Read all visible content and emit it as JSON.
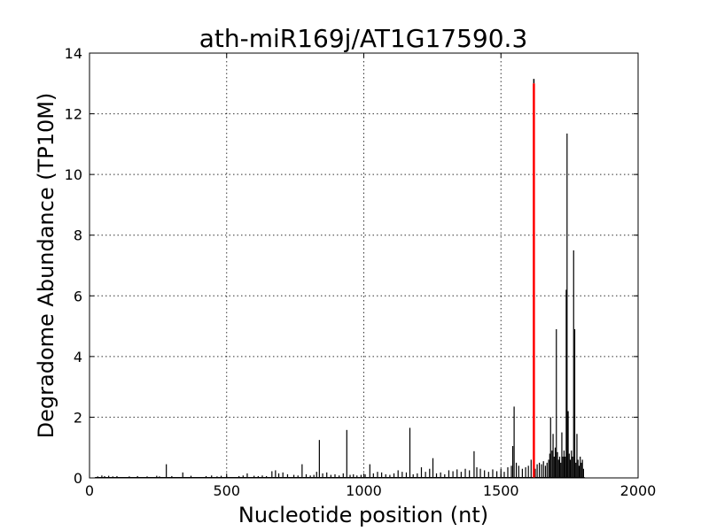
{
  "chart_data": {
    "type": "bar",
    "title": "ath-miR169j/AT1G17590.3",
    "xlabel": "Nucleotide position (nt)",
    "ylabel": "Degradome Abundance (TP10M)",
    "xlim": [
      0,
      2000
    ],
    "ylim": [
      0,
      14
    ],
    "xticks": [
      "0",
      "500",
      "1000",
      "1500",
      "2000"
    ],
    "yticks": [
      "0",
      "2",
      "4",
      "6",
      "8",
      "10",
      "12",
      "14"
    ],
    "grid": true,
    "colors": {
      "series": "#000000",
      "highlight": "#ff0000"
    },
    "series": [
      {
        "values": [
          [
            30,
            0.05
          ],
          [
            45,
            0.08
          ],
          [
            55,
            0.06
          ],
          [
            70,
            0.07
          ],
          [
            85,
            0.05
          ],
          [
            100,
            0.06
          ],
          [
            145,
            0.05
          ],
          [
            175,
            0.06
          ],
          [
            210,
            0.05
          ],
          [
            245,
            0.07
          ],
          [
            255,
            0.05
          ],
          [
            280,
            0.45
          ],
          [
            300,
            0.06
          ],
          [
            340,
            0.18
          ],
          [
            370,
            0.07
          ],
          [
            425,
            0.06
          ],
          [
            445,
            0.08
          ],
          [
            465,
            0.05
          ],
          [
            480,
            0.07
          ],
          [
            500,
            0.05
          ],
          [
            545,
            0.06
          ],
          [
            560,
            0.08
          ],
          [
            575,
            0.15
          ],
          [
            600,
            0.07
          ],
          [
            615,
            0.06
          ],
          [
            630,
            0.08
          ],
          [
            645,
            0.06
          ],
          [
            665,
            0.22
          ],
          [
            678,
            0.25
          ],
          [
            690,
            0.15
          ],
          [
            705,
            0.18
          ],
          [
            722,
            0.12
          ],
          [
            745,
            0.1
          ],
          [
            760,
            0.08
          ],
          [
            775,
            0.45
          ],
          [
            790,
            0.12
          ],
          [
            805,
            0.08
          ],
          [
            818,
            0.1
          ],
          [
            828,
            0.2
          ],
          [
            838,
            1.25
          ],
          [
            850,
            0.15
          ],
          [
            865,
            0.18
          ],
          [
            880,
            0.1
          ],
          [
            895,
            0.12
          ],
          [
            910,
            0.08
          ],
          [
            925,
            0.15
          ],
          [
            938,
            1.58
          ],
          [
            950,
            0.1
          ],
          [
            962,
            0.12
          ],
          [
            975,
            0.08
          ],
          [
            990,
            0.1
          ],
          [
            1005,
            0.12
          ],
          [
            1022,
            0.45
          ],
          [
            1035,
            0.15
          ],
          [
            1050,
            0.2
          ],
          [
            1065,
            0.18
          ],
          [
            1080,
            0.12
          ],
          [
            1095,
            0.1
          ],
          [
            1110,
            0.15
          ],
          [
            1125,
            0.25
          ],
          [
            1140,
            0.2
          ],
          [
            1155,
            0.18
          ],
          [
            1168,
            1.65
          ],
          [
            1180,
            0.12
          ],
          [
            1195,
            0.15
          ],
          [
            1210,
            0.35
          ],
          [
            1225,
            0.2
          ],
          [
            1240,
            0.3
          ],
          [
            1252,
            0.65
          ],
          [
            1265,
            0.15
          ],
          [
            1280,
            0.18
          ],
          [
            1295,
            0.12
          ],
          [
            1310,
            0.25
          ],
          [
            1325,
            0.22
          ],
          [
            1340,
            0.28
          ],
          [
            1355,
            0.2
          ],
          [
            1370,
            0.3
          ],
          [
            1385,
            0.25
          ],
          [
            1402,
            0.88
          ],
          [
            1412,
            0.35
          ],
          [
            1425,
            0.3
          ],
          [
            1440,
            0.25
          ],
          [
            1455,
            0.2
          ],
          [
            1470,
            0.28
          ],
          [
            1485,
            0.22
          ],
          [
            1500,
            0.3
          ],
          [
            1512,
            0.2
          ],
          [
            1525,
            0.35
          ],
          [
            1538,
            0.4
          ],
          [
            1543,
            1.05
          ],
          [
            1548,
            2.35
          ],
          [
            1556,
            0.5
          ],
          [
            1565,
            0.4
          ],
          [
            1578,
            0.3
          ],
          [
            1590,
            0.35
          ],
          [
            1600,
            0.4
          ],
          [
            1610,
            0.6
          ],
          [
            1625,
            0.3
          ],
          [
            1632,
            0.45
          ],
          [
            1640,
            0.5
          ],
          [
            1648,
            0.45
          ],
          [
            1655,
            0.55
          ],
          [
            1662,
            0.4
          ],
          [
            1668,
            0.5
          ],
          [
            1674,
            0.6
          ],
          [
            1678,
            0.8
          ],
          [
            1681,
            2.0
          ],
          [
            1686,
            0.9
          ],
          [
            1690,
            1.45
          ],
          [
            1694,
            0.7
          ],
          [
            1698,
            1.0
          ],
          [
            1702,
            4.9
          ],
          [
            1706,
            0.85
          ],
          [
            1710,
            0.6
          ],
          [
            1714,
            0.7
          ],
          [
            1718,
            0.5
          ],
          [
            1722,
            1.5
          ],
          [
            1726,
            0.7
          ],
          [
            1730,
            0.9
          ],
          [
            1734,
            0.7
          ],
          [
            1738,
            6.2
          ],
          [
            1741,
            11.35
          ],
          [
            1745,
            2.2
          ],
          [
            1749,
            0.8
          ],
          [
            1753,
            0.6
          ],
          [
            1757,
            0.9
          ],
          [
            1761,
            0.7
          ],
          [
            1765,
            7.5
          ],
          [
            1769,
            4.9
          ],
          [
            1773,
            0.5
          ],
          [
            1777,
            1.45
          ],
          [
            1781,
            0.6
          ],
          [
            1785,
            0.4
          ],
          [
            1789,
            0.7
          ],
          [
            1793,
            0.5
          ],
          [
            1797,
            0.6
          ],
          [
            1801,
            0.3
          ]
        ]
      }
    ],
    "highlight": {
      "x": 1620,
      "y": 13.0
    }
  }
}
